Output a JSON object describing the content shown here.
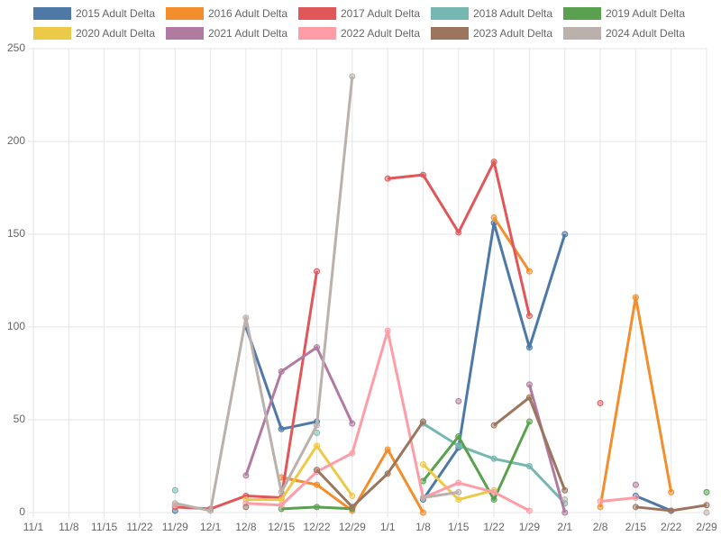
{
  "chart_data": {
    "type": "line",
    "categories": [
      "11/1",
      "11/8",
      "11/15",
      "11/22",
      "11/29",
      "12/1",
      "12/8",
      "12/15",
      "12/22",
      "12/29",
      "1/1",
      "1/8",
      "1/15",
      "1/22",
      "1/29",
      "2/1",
      "2/8",
      "2/15",
      "2/22",
      "2/29"
    ],
    "ylim": [
      0,
      250
    ],
    "yticks": [
      0,
      50,
      100,
      150,
      200,
      250
    ],
    "grid": true,
    "legend": "top",
    "series": [
      {
        "name": "2015 Adult Delta",
        "color": "#4e79a7",
        "values": [
          null,
          null,
          null,
          null,
          1,
          null,
          100,
          45,
          49,
          null,
          null,
          7,
          35,
          156,
          89,
          150,
          null,
          9,
          1,
          null
        ]
      },
      {
        "name": "2016 Adult Delta",
        "color": "#f28e2b",
        "values": [
          null,
          null,
          null,
          null,
          null,
          null,
          null,
          19,
          15,
          1,
          34,
          0,
          null,
          159,
          130,
          null,
          3,
          116,
          11,
          null
        ]
      },
      {
        "name": "2017 Adult Delta",
        "color": "#e15759",
        "values": [
          null,
          null,
          null,
          null,
          3,
          2,
          9,
          8,
          130,
          null,
          180,
          182,
          151,
          189,
          106,
          null,
          59,
          null,
          null,
          null
        ]
      },
      {
        "name": "2018 Adult Delta",
        "color": "#76b7b2",
        "values": [
          null,
          null,
          null,
          null,
          12,
          null,
          null,
          null,
          43,
          null,
          null,
          48,
          36,
          29,
          25,
          5,
          null,
          null,
          null,
          null
        ]
      },
      {
        "name": "2019 Adult Delta",
        "color": "#59a14f",
        "values": [
          null,
          null,
          null,
          null,
          null,
          null,
          null,
          2,
          3,
          2,
          null,
          17,
          41,
          7,
          49,
          null,
          null,
          null,
          null,
          11
        ]
      },
      {
        "name": "2020 Adult Delta",
        "color": "#edc948",
        "values": [
          null,
          null,
          null,
          null,
          null,
          null,
          7,
          7,
          36,
          9,
          null,
          26,
          7,
          12,
          null,
          null,
          null,
          null,
          null,
          null
        ]
      },
      {
        "name": "2021 Adult Delta",
        "color": "#b07aa1",
        "values": [
          null,
          null,
          null,
          null,
          null,
          null,
          20,
          76,
          89,
          48,
          null,
          null,
          60,
          null,
          69,
          0,
          null,
          15,
          null,
          null
        ]
      },
      {
        "name": "2022 Adult Delta",
        "color": "#ff9da7",
        "values": [
          null,
          null,
          null,
          null,
          4,
          null,
          5,
          4,
          22,
          32,
          98,
          8,
          16,
          11,
          1,
          null,
          6,
          8,
          null,
          null
        ]
      },
      {
        "name": "2023 Adult Delta",
        "color": "#9c755f",
        "values": [
          null,
          null,
          null,
          null,
          null,
          null,
          3,
          null,
          23,
          3,
          21,
          49,
          null,
          47,
          62,
          12,
          null,
          3,
          1,
          4
        ]
      },
      {
        "name": "2024 Adult Delta",
        "color": "#bab0ac",
        "values": [
          null,
          null,
          null,
          null,
          5,
          1,
          105,
          11,
          47,
          235,
          null,
          8,
          11,
          null,
          null,
          7,
          null,
          null,
          null,
          0
        ]
      }
    ]
  }
}
